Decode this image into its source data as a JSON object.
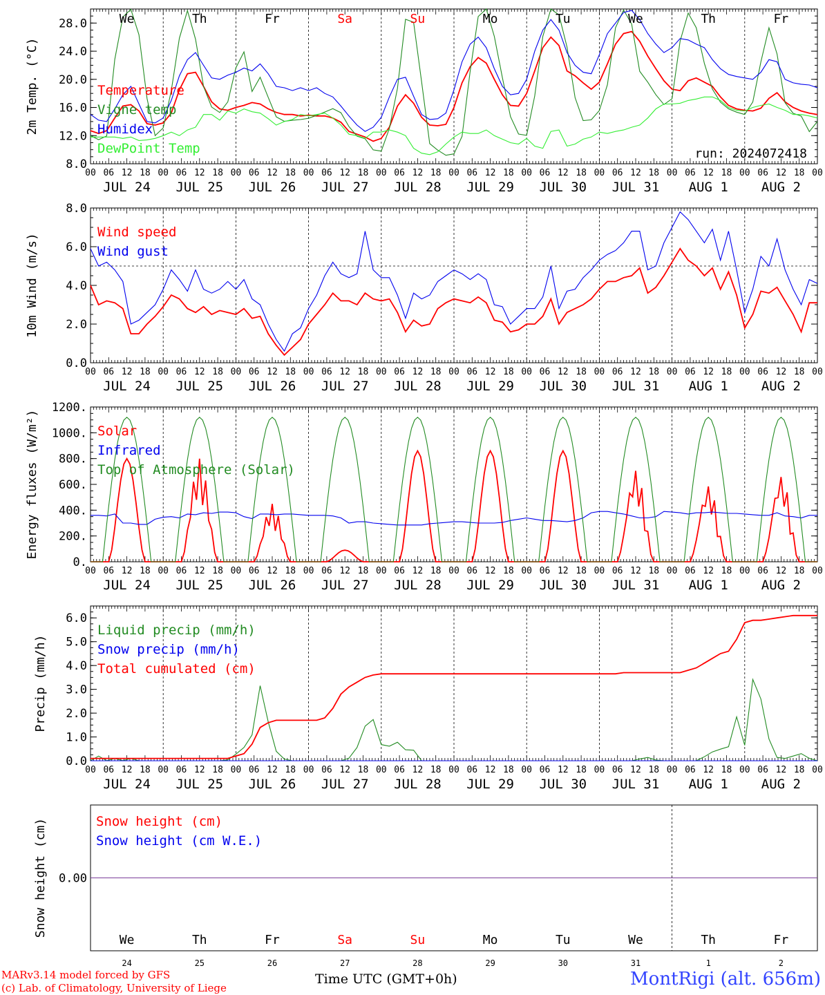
{
  "footer": {
    "model": "MARv3.14 model forced by GFS",
    "credit": "(c) Lab. of Climatology, University of Liege",
    "axis_title": "Time UTC (GMT+0h)",
    "station": "MontRigi (alt. 656m)"
  },
  "colors": {
    "red": "#ff0000",
    "green": "#228b22",
    "blue": "#0000ee",
    "lightgreen": "#33ee33",
    "purple": "#7a3b9a"
  },
  "days": [
    {
      "name": "We",
      "weekend": false
    },
    {
      "name": "Th",
      "weekend": false
    },
    {
      "name": "Fr",
      "weekend": false
    },
    {
      "name": "Sa",
      "weekend": true
    },
    {
      "name": "Su",
      "weekend": true
    },
    {
      "name": "Mo",
      "weekend": false
    },
    {
      "name": "Tu",
      "weekend": false
    },
    {
      "name": "We",
      "weekend": false
    },
    {
      "name": "Th",
      "weekend": false
    },
    {
      "name": "Fr",
      "weekend": false
    }
  ],
  "date_labels": [
    "JUL 24",
    "JUL 25",
    "JUL 26",
    "JUL 27",
    "JUL 28",
    "JUL 29",
    "JUL 30",
    "JUL 31",
    "AUG  1",
    "AUG  2"
  ],
  "day_numbers": [
    "24",
    "25",
    "26",
    "27",
    "28",
    "29",
    "30",
    "31",
    "1",
    "2"
  ],
  "hour_ticks": [
    "00",
    "06",
    "12",
    "18"
  ],
  "chart_data": [
    {
      "type": "line",
      "ylabel": "2m Temp. (°C)",
      "ylim": [
        8,
        30
      ],
      "yticks": [
        "8.0",
        "12.0",
        "16.0",
        "20.0",
        "24.0",
        "28.0"
      ],
      "annotation": "run: 2024072418",
      "series": [
        {
          "name": "Temperature",
          "color": "red",
          "values": [
            12.7,
            12.3,
            12.7,
            14.5,
            16.2,
            16.4,
            15.5,
            13.7,
            13.5,
            13.8,
            15.2,
            18.5,
            20.8,
            21.0,
            19.0,
            16.8,
            15.8,
            15.6,
            16.0,
            16.3,
            16.7,
            16.5,
            15.8,
            15.3,
            15.0,
            15.0,
            14.8,
            14.9,
            14.8,
            14.8,
            14.5,
            13.9,
            12.6,
            12.2,
            11.8,
            11.2,
            11.6,
            13.2,
            16.2,
            17.8,
            16.6,
            14.6,
            13.5,
            13.4,
            13.6,
            16.0,
            19.5,
            21.8,
            23.1,
            22.3,
            20.0,
            17.8,
            16.3,
            16.2,
            18.0,
            21.2,
            24.5,
            26.0,
            24.8,
            21.2,
            20.5,
            19.5,
            18.6,
            19.6,
            22.2,
            25.0,
            26.5,
            26.8,
            25.4,
            23.3,
            21.5,
            19.8,
            18.6,
            18.4,
            19.8,
            20.2,
            19.6,
            19.0,
            17.5,
            16.3,
            15.8,
            15.6,
            15.5,
            15.9,
            17.3,
            18.1,
            16.8,
            16.0,
            15.5,
            15.2,
            15.0
          ]
        },
        {
          "name": "Vigne temp",
          "color": "green",
          "values": [
            12.0,
            11.4,
            12.0,
            24.5,
            29.8,
            30.0,
            25.0,
            13.8,
            11.0,
            14.5,
            21.5,
            30.0,
            29.5,
            20.5,
            16.5,
            15.2,
            15.5,
            20.8,
            25.0,
            18.0,
            20.5,
            17.5,
            14.6,
            14.0,
            14.2,
            14.3,
            14.5,
            15.0,
            15.5,
            16.0,
            14.8,
            12.2,
            11.7,
            11.4,
            8.2,
            12.2,
            14.5,
            28.0,
            30.0,
            21.5,
            11.0,
            10.0,
            9.2,
            9.4,
            12.0,
            22.0,
            30.0,
            30.0,
            25.0,
            18.5,
            13.0,
            11.8,
            12.2,
            22.0,
            30.0,
            30.0,
            28.0,
            19.0,
            14.2,
            14.0,
            15.0,
            17.8,
            27.0,
            30.0,
            28.0,
            21.0,
            19.5,
            17.6,
            16.2,
            17.5,
            28.0,
            30.0,
            26.0,
            20.0,
            17.6,
            16.0,
            15.6,
            15.0,
            15.0,
            20.0,
            28.0,
            25.5,
            17.0,
            15.2,
            15.0,
            12.5,
            14.0
          ]
        },
        {
          "name": "Humidex",
          "color": "blue",
          "values": [
            15.0,
            14.2,
            14.0,
            15.8,
            17.8,
            19.0,
            16.5,
            14.0,
            13.8,
            14.5,
            17.0,
            20.5,
            22.8,
            23.8,
            22.0,
            20.2,
            20.0,
            20.6,
            21.0,
            21.6,
            21.2,
            22.2,
            20.8,
            19.0,
            18.8,
            18.4,
            18.8,
            18.4,
            18.8,
            18.0,
            17.5,
            16.2,
            14.8,
            13.5,
            12.6,
            13.2,
            14.6,
            17.5,
            20.0,
            20.3,
            17.6,
            15.0,
            14.3,
            14.4,
            15.2,
            18.5,
            22.5,
            25.0,
            26.0,
            24.5,
            21.5,
            19.0,
            17.8,
            18.0,
            20.0,
            24.0,
            27.0,
            28.5,
            27.0,
            23.8,
            22.0,
            21.0,
            20.8,
            23.5,
            26.5,
            28.0,
            29.5,
            29.8,
            28.5,
            26.5,
            25.0,
            23.8,
            24.5,
            25.8,
            25.6,
            25.0,
            24.5,
            22.8,
            21.5,
            20.7,
            20.4,
            20.2,
            20.0,
            21.0,
            22.8,
            22.5,
            20.0,
            19.5,
            19.3,
            19.2,
            18.8
          ]
        },
        {
          "name": "DewPoint Temp",
          "color": "lightgreen",
          "values": [
            11.8,
            11.8,
            11.8,
            11.8,
            11.6,
            11.8,
            11.3,
            11.4,
            11.6,
            12.0,
            12.5,
            12.0,
            12.8,
            13.2,
            15.0,
            15.0,
            14.2,
            15.5,
            15.2,
            15.8,
            15.4,
            15.2,
            14.4,
            13.5,
            14.0,
            14.3,
            15.0,
            14.8,
            15.0,
            15.2,
            14.5,
            13.5,
            12.2,
            12.0,
            11.6,
            12.5,
            12.5,
            12.8,
            12.5,
            12.0,
            10.2,
            9.5,
            9.3,
            9.7,
            10.8,
            11.8,
            12.5,
            12.3,
            12.3,
            12.8,
            12.0,
            11.5,
            11.0,
            10.8,
            11.6,
            10.5,
            10.2,
            12.6,
            12.8,
            10.5,
            10.8,
            11.5,
            11.8,
            12.5,
            12.3,
            12.6,
            12.8,
            13.2,
            13.5,
            14.5,
            15.8,
            16.5,
            16.5,
            16.6,
            17.0,
            17.2,
            17.5,
            17.5,
            17.0,
            16.0,
            15.6,
            15.5,
            16.0,
            16.3,
            16.5,
            16.0,
            15.6,
            15.0,
            15.0,
            14.8,
            14.5
          ]
        }
      ]
    },
    {
      "type": "line",
      "ylabel": "10m Wind (m/s)",
      "ylim": [
        0,
        8
      ],
      "yticks": [
        "0.0",
        "2.0",
        "4.0",
        "6.0",
        "8.0"
      ],
      "reference_line": 5,
      "series": [
        {
          "name": "Wind speed",
          "color": "red",
          "values": [
            4.0,
            3.0,
            3.2,
            3.1,
            2.8,
            1.5,
            1.5,
            2.0,
            2.4,
            2.9,
            3.5,
            3.3,
            2.8,
            2.6,
            2.9,
            2.5,
            2.7,
            2.6,
            2.5,
            2.8,
            2.3,
            2.4,
            1.5,
            0.9,
            0.4,
            0.8,
            1.2,
            2.0,
            2.5,
            3.0,
            3.6,
            3.2,
            3.2,
            3.0,
            3.6,
            3.3,
            3.2,
            3.3,
            2.6,
            1.6,
            2.2,
            1.9,
            2.0,
            2.8,
            3.1,
            3.3,
            3.2,
            3.1,
            3.4,
            3.1,
            2.2,
            2.1,
            1.6,
            1.7,
            2.0,
            2.0,
            2.4,
            3.3,
            2.0,
            2.6,
            2.8,
            3.0,
            3.3,
            3.8,
            4.2,
            4.2,
            4.4,
            4.5,
            4.9,
            3.6,
            3.9,
            4.5,
            5.2,
            5.9,
            5.3,
            5.0,
            4.5,
            4.9,
            3.8,
            4.7,
            3.5,
            1.8,
            2.5,
            3.7,
            3.6,
            3.9,
            3.2,
            2.5,
            1.6,
            3.1,
            3.1
          ]
        },
        {
          "name": "Wind gust",
          "color": "blue",
          "values": [
            5.9,
            5.0,
            5.2,
            4.8,
            4.2,
            2.0,
            2.2,
            2.6,
            3.0,
            3.8,
            4.8,
            4.3,
            3.7,
            4.8,
            3.8,
            3.6,
            3.8,
            4.2,
            3.8,
            4.3,
            3.3,
            3.0,
            2.0,
            1.2,
            0.6,
            1.5,
            1.8,
            2.8,
            3.5,
            4.5,
            5.2,
            4.6,
            4.4,
            4.6,
            6.8,
            4.8,
            4.4,
            4.4,
            3.5,
            2.3,
            3.6,
            3.3,
            3.5,
            4.2,
            4.5,
            4.8,
            4.6,
            4.3,
            4.6,
            4.3,
            3.0,
            2.9,
            2.0,
            2.4,
            2.8,
            2.8,
            3.4,
            5.0,
            2.8,
            3.7,
            3.8,
            4.4,
            4.8,
            5.3,
            5.6,
            5.8,
            6.2,
            6.8,
            6.8,
            4.8,
            5.0,
            6.2,
            7.0,
            7.8,
            7.4,
            6.8,
            6.2,
            6.9,
            5.3,
            6.8,
            4.8,
            2.6,
            3.8,
            5.5,
            5.0,
            6.4,
            4.8,
            3.8,
            3.0,
            4.3,
            4.1
          ]
        }
      ]
    },
    {
      "type": "line",
      "ylabel": "Energy fluxes (W/m²)",
      "ylim": [
        0,
        1200
      ],
      "yticks": [
        "0.",
        "200.",
        "400.",
        "600.",
        "800.",
        "1000.",
        "1200."
      ],
      "series": [
        {
          "name": "Solar",
          "color": "red",
          "peak_per_day": [
            800,
            800,
            450,
            90,
            860,
            860,
            860,
            720,
            600,
            680
          ]
        },
        {
          "name": "Infrared",
          "color": "blue",
          "values": [
            360,
            360,
            355,
            370,
            300,
            300,
            290,
            290,
            330,
            345,
            350,
            340,
            370,
            365,
            380,
            375,
            385,
            385,
            380,
            350,
            335,
            370,
            370,
            365,
            370,
            370,
            365,
            360,
            360,
            360,
            355,
            340,
            300,
            310,
            310,
            300,
            295,
            290,
            285,
            285,
            285,
            285,
            295,
            300,
            305,
            310,
            310,
            305,
            300,
            300,
            300,
            305,
            320,
            330,
            340,
            330,
            320,
            320,
            315,
            310,
            320,
            340,
            380,
            390,
            390,
            380,
            370,
            355,
            340,
            340,
            350,
            390,
            385,
            380,
            370,
            380,
            380,
            385,
            380,
            375,
            375,
            370,
            365,
            360,
            360,
            380,
            355,
            350,
            340,
            360,
            360
          ]
        },
        {
          "name": "Top of Atmosphere (Solar)",
          "color": "green",
          "peak": 1120
        }
      ]
    },
    {
      "type": "line",
      "ylabel": "Precip (mm/h)",
      "ylim": [
        0,
        6.5
      ],
      "yticks": [
        "0.0",
        "1.0",
        "2.0",
        "3.0",
        "4.0",
        "5.0",
        "6.0"
      ],
      "series": [
        {
          "name": "Liquid precip (mm/h)",
          "color": "green",
          "values": [
            0,
            0.2,
            0,
            0.1,
            0,
            0.1,
            0,
            0,
            0,
            0,
            0,
            0,
            0,
            0,
            0,
            0,
            0,
            0,
            0.2,
            0.6,
            0.4,
            3.5,
            2.0,
            0.5,
            0.1,
            0,
            0,
            0,
            0,
            0,
            0,
            0,
            0,
            0.3,
            1.0,
            2.2,
            1.0,
            0.2,
            1.2,
            0.2,
            0.8,
            0,
            0,
            0,
            0,
            0,
            0,
            0,
            0,
            0,
            0,
            0,
            0,
            0,
            0,
            0,
            0,
            0,
            0,
            0,
            0,
            0,
            0,
            0,
            0,
            0,
            0,
            0,
            0,
            0.1,
            0.15,
            0,
            0,
            0,
            0,
            0,
            0,
            0.2,
            0.4,
            0.5,
            0.6,
            2.0,
            0.5,
            3.7,
            2.5,
            0.8,
            0.1,
            0.1,
            0.2,
            0.3,
            0.1,
            0
          ]
        },
        {
          "name": "Snow precip (mm/h)",
          "color": "blue",
          "values": [
            0
          ]
        },
        {
          "name": "Total cumulated (cm)",
          "color": "red",
          "values": [
            0.1,
            0.1,
            0.1,
            0.1,
            0.1,
            0.1,
            0.1,
            0.1,
            0.1,
            0.1,
            0.1,
            0.1,
            0.1,
            0.1,
            0.1,
            0.1,
            0.1,
            0.1,
            0.2,
            0.3,
            0.7,
            1.4,
            1.6,
            1.7,
            1.7,
            1.7,
            1.7,
            1.7,
            1.7,
            1.8,
            2.2,
            2.8,
            3.1,
            3.3,
            3.5,
            3.6,
            3.65,
            3.65,
            3.65,
            3.65,
            3.65,
            3.65,
            3.65,
            3.65,
            3.65,
            3.65,
            3.65,
            3.65,
            3.65,
            3.65,
            3.65,
            3.65,
            3.65,
            3.65,
            3.65,
            3.65,
            3.65,
            3.65,
            3.65,
            3.65,
            3.65,
            3.65,
            3.65,
            3.65,
            3.65,
            3.65,
            3.7,
            3.7,
            3.7,
            3.7,
            3.7,
            3.7,
            3.7,
            3.7,
            3.8,
            3.9,
            4.1,
            4.3,
            4.5,
            4.6,
            5.1,
            5.8,
            5.9,
            5.9,
            5.95,
            6.0,
            6.05,
            6.1,
            6.1,
            6.1,
            6.1
          ]
        }
      ]
    },
    {
      "type": "line",
      "ylabel": "Snow height (cm)",
      "ylim": [
        -1,
        1
      ],
      "yticks": [
        "0.00"
      ],
      "series": [
        {
          "name": "Snow height (cm)",
          "color": "red",
          "values": [
            0
          ]
        },
        {
          "name": "Snow height (cm W.E.)",
          "color": "blue",
          "values": [
            0
          ]
        }
      ]
    }
  ]
}
